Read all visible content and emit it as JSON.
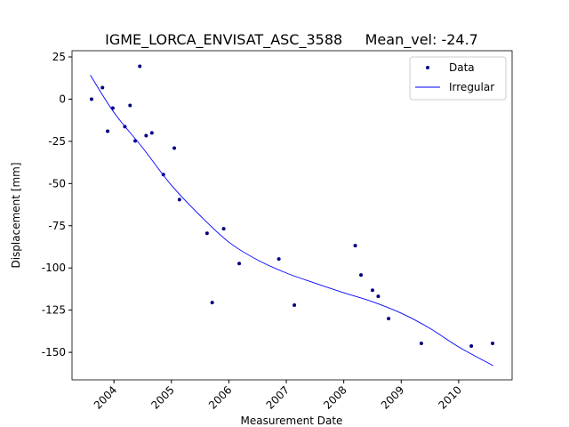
{
  "chart_data": {
    "type": "scatter-line",
    "title": "IGME_LORCA_ENVISAT_ASC_3588     Mean_vel: -24.7",
    "x_label": "Measurement Date",
    "y_label": "Displacement [mm]",
    "xlim": [
      2003.27,
      2010.93
    ],
    "xticks": [
      2004,
      2005,
      2006,
      2007,
      2008,
      2009,
      2010
    ],
    "ylim": [
      -166.3,
      28.7
    ],
    "yticks": [
      25,
      0,
      -25,
      -50,
      -75,
      -100,
      -125,
      -150
    ],
    "legend": "upper right",
    "series": [
      {
        "name": "Data",
        "color": "#00007f",
        "mode": "markers",
        "x": [
          2003.61,
          2003.8,
          2003.89,
          2003.98,
          2004.19,
          2004.28,
          2004.37,
          2004.45,
          2004.56,
          2004.66,
          2004.86,
          2005.05,
          2005.14,
          2005.62,
          2005.71,
          2005.91,
          2006.18,
          2006.87,
          2007.14,
          2008.2,
          2008.3,
          2008.5,
          2008.6,
          2008.78,
          2009.35,
          2010.22,
          2010.59
        ],
        "values": [
          0,
          6.8,
          -19,
          -5.3,
          -16.3,
          -3.7,
          -24.7,
          19.5,
          -21.6,
          -20,
          -44.7,
          -29,
          -59.5,
          -79.5,
          -120.5,
          -76.8,
          -97.4,
          -94.7,
          -122,
          -86.8,
          -104.2,
          -113.2,
          -116.8,
          -130,
          -144.7,
          -146.3,
          -144.7
        ]
      },
      {
        "name": "Irregular",
        "color": "#0000ff",
        "mode": "line",
        "x": [
          2003.59,
          2004.0,
          2004.49,
          2005.0,
          2005.5,
          2006.0,
          2006.5,
          2007.0,
          2007.5,
          2008.0,
          2008.5,
          2009.0,
          2009.5,
          2010.0,
          2010.6
        ],
        "values": [
          14.2,
          -7.9,
          -28.4,
          -51,
          -69,
          -84.7,
          -95.3,
          -103,
          -109,
          -114.7,
          -120,
          -126.8,
          -135.8,
          -146.8,
          -157.9
        ]
      }
    ]
  }
}
